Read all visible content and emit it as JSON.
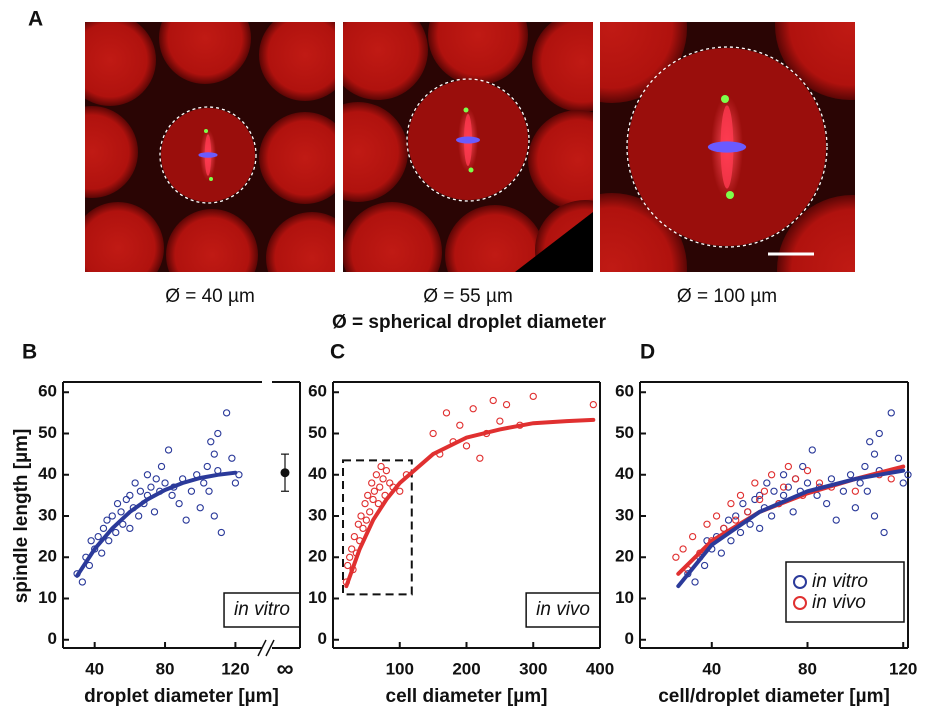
{
  "panel_a": {
    "label": "A",
    "captions": [
      "Ø = 40 µm",
      "Ø = 55 µm",
      "Ø = 100 µm"
    ],
    "legend": "Ø = spherical droplet diameter"
  },
  "chart_data": [
    {
      "type": "scatter",
      "panel": "B",
      "y_label": "spindle length [µm]",
      "x_label": "droplet diameter [µm]",
      "xlim": [
        22,
        130
      ],
      "xticks": [
        40,
        80,
        120
      ],
      "ylim": [
        -2,
        62
      ],
      "yticks": [
        0,
        10,
        20,
        30,
        40,
        50,
        60
      ],
      "annotation": "in vitro",
      "break_label": "∞",
      "break_point": {
        "value": 40.5,
        "error": 4.5
      },
      "series": [
        {
          "style": "markers",
          "color": "#2b3a9a",
          "x": [
            30,
            33,
            35,
            37,
            38,
            40,
            42,
            44,
            45,
            47,
            48,
            50,
            52,
            53,
            55,
            56,
            58,
            60,
            60,
            62,
            63,
            65,
            66,
            68,
            70,
            70,
            72,
            74,
            75,
            77,
            78,
            80,
            82,
            84,
            85,
            88,
            90,
            92,
            95,
            98,
            100,
            102,
            104,
            105,
            106,
            108,
            108,
            110,
            110,
            112,
            115,
            118,
            120,
            122
          ],
          "values": [
            16,
            14,
            20,
            18,
            24,
            22,
            25,
            21,
            27,
            29,
            24,
            30,
            26,
            33,
            31,
            28,
            34,
            35,
            27,
            32,
            38,
            30,
            36,
            33,
            40,
            35,
            37,
            31,
            39,
            36,
            42,
            38,
            46,
            35,
            37,
            33,
            39,
            29,
            36,
            40,
            32,
            38,
            42,
            36,
            48,
            45,
            30,
            50,
            41,
            26,
            55,
            44,
            38,
            40
          ]
        },
        {
          "style": "line",
          "color": "#2b3a9a",
          "x": [
            30,
            40,
            50,
            60,
            70,
            80,
            90,
            100,
            110,
            120
          ],
          "values": [
            15.5,
            22,
            27,
            31,
            34,
            36.3,
            38,
            39.2,
            40,
            40.5
          ]
        }
      ]
    },
    {
      "type": "scatter",
      "panel": "C",
      "x_label": "cell diameter [µm]",
      "xlim": [
        0,
        400
      ],
      "xticks": [
        100,
        200,
        300,
        400
      ],
      "ylim": [
        -2,
        62
      ],
      "yticks": [
        0,
        10,
        20,
        30,
        40,
        50,
        60
      ],
      "annotation": "in vivo",
      "inset_region": {
        "x": [
          15,
          118
        ],
        "y": [
          11,
          43.5
        ]
      },
      "series": [
        {
          "style": "markers",
          "color": "#e03030",
          "x": [
            20,
            22,
            25,
            28,
            30,
            32,
            35,
            38,
            40,
            42,
            45,
            48,
            50,
            52,
            55,
            58,
            60,
            62,
            65,
            68,
            70,
            72,
            75,
            78,
            80,
            85,
            90,
            100,
            110,
            150,
            160,
            170,
            180,
            190,
            200,
            210,
            220,
            230,
            240,
            250,
            260,
            280,
            300,
            390
          ],
          "values": [
            14,
            18,
            20,
            22,
            17,
            25,
            21,
            28,
            24,
            30,
            27,
            33,
            29,
            35,
            31,
            38,
            34,
            36,
            40,
            33,
            37,
            42,
            39,
            35,
            41,
            38,
            37,
            36,
            40,
            50,
            45,
            55,
            48,
            52,
            47,
            56,
            44,
            50,
            58,
            53,
            57,
            52,
            59,
            57
          ]
        },
        {
          "style": "line",
          "color": "#e03030",
          "x": [
            20,
            40,
            60,
            80,
            100,
            150,
            200,
            250,
            300,
            350,
            390
          ],
          "values": [
            13,
            22,
            29,
            34,
            38,
            45,
            49,
            51,
            52.5,
            53,
            53.3
          ]
        }
      ]
    },
    {
      "type": "scatter",
      "panel": "D",
      "x_label": "cell/droplet diameter [µm]",
      "xlim": [
        10,
        122
      ],
      "xticks": [
        40,
        80,
        120
      ],
      "ylim": [
        -2,
        62
      ],
      "yticks": [
        0,
        10,
        20,
        30,
        40,
        50,
        60
      ],
      "legend": "lower right",
      "series": [
        {
          "name": "in vitro",
          "style": "markers",
          "color": "#2b3a9a",
          "x": [
            30,
            33,
            35,
            37,
            38,
            40,
            42,
            44,
            45,
            47,
            48,
            50,
            52,
            53,
            55,
            56,
            58,
            60,
            60,
            62,
            63,
            65,
            66,
            68,
            70,
            70,
            72,
            74,
            75,
            77,
            78,
            80,
            82,
            84,
            85,
            88,
            90,
            92,
            95,
            98,
            100,
            102,
            104,
            105,
            106,
            108,
            108,
            110,
            110,
            112,
            115,
            118,
            120,
            122
          ],
          "values": [
            16,
            14,
            20,
            18,
            24,
            22,
            25,
            21,
            27,
            29,
            24,
            30,
            26,
            33,
            31,
            28,
            34,
            35,
            27,
            32,
            38,
            30,
            36,
            33,
            40,
            35,
            37,
            31,
            39,
            36,
            42,
            38,
            46,
            35,
            37,
            33,
            39,
            29,
            36,
            40,
            32,
            38,
            42,
            36,
            48,
            45,
            30,
            50,
            41,
            26,
            55,
            44,
            38,
            40
          ]
        },
        {
          "name": "in vivo",
          "style": "markers",
          "color": "#e03030",
          "x": [
            25,
            28,
            30,
            32,
            35,
            38,
            40,
            42,
            45,
            48,
            50,
            52,
            55,
            58,
            60,
            62,
            65,
            68,
            70,
            72,
            75,
            78,
            80,
            85,
            90,
            100,
            110,
            115
          ],
          "values": [
            20,
            22,
            17,
            25,
            21,
            28,
            24,
            30,
            27,
            33,
            29,
            35,
            31,
            38,
            34,
            36,
            40,
            33,
            37,
            42,
            39,
            35,
            41,
            38,
            37,
            36,
            40,
            39
          ]
        },
        {
          "style": "line",
          "color": "#e03030",
          "x": [
            26,
            40,
            60,
            80,
            100,
            120
          ],
          "values": [
            16,
            24,
            31,
            35.5,
            39,
            42
          ]
        },
        {
          "style": "line",
          "color": "#2b3a9a",
          "x": [
            26,
            40,
            60,
            80,
            100,
            120
          ],
          "values": [
            13,
            23,
            31,
            36,
            39,
            41
          ]
        }
      ]
    }
  ]
}
